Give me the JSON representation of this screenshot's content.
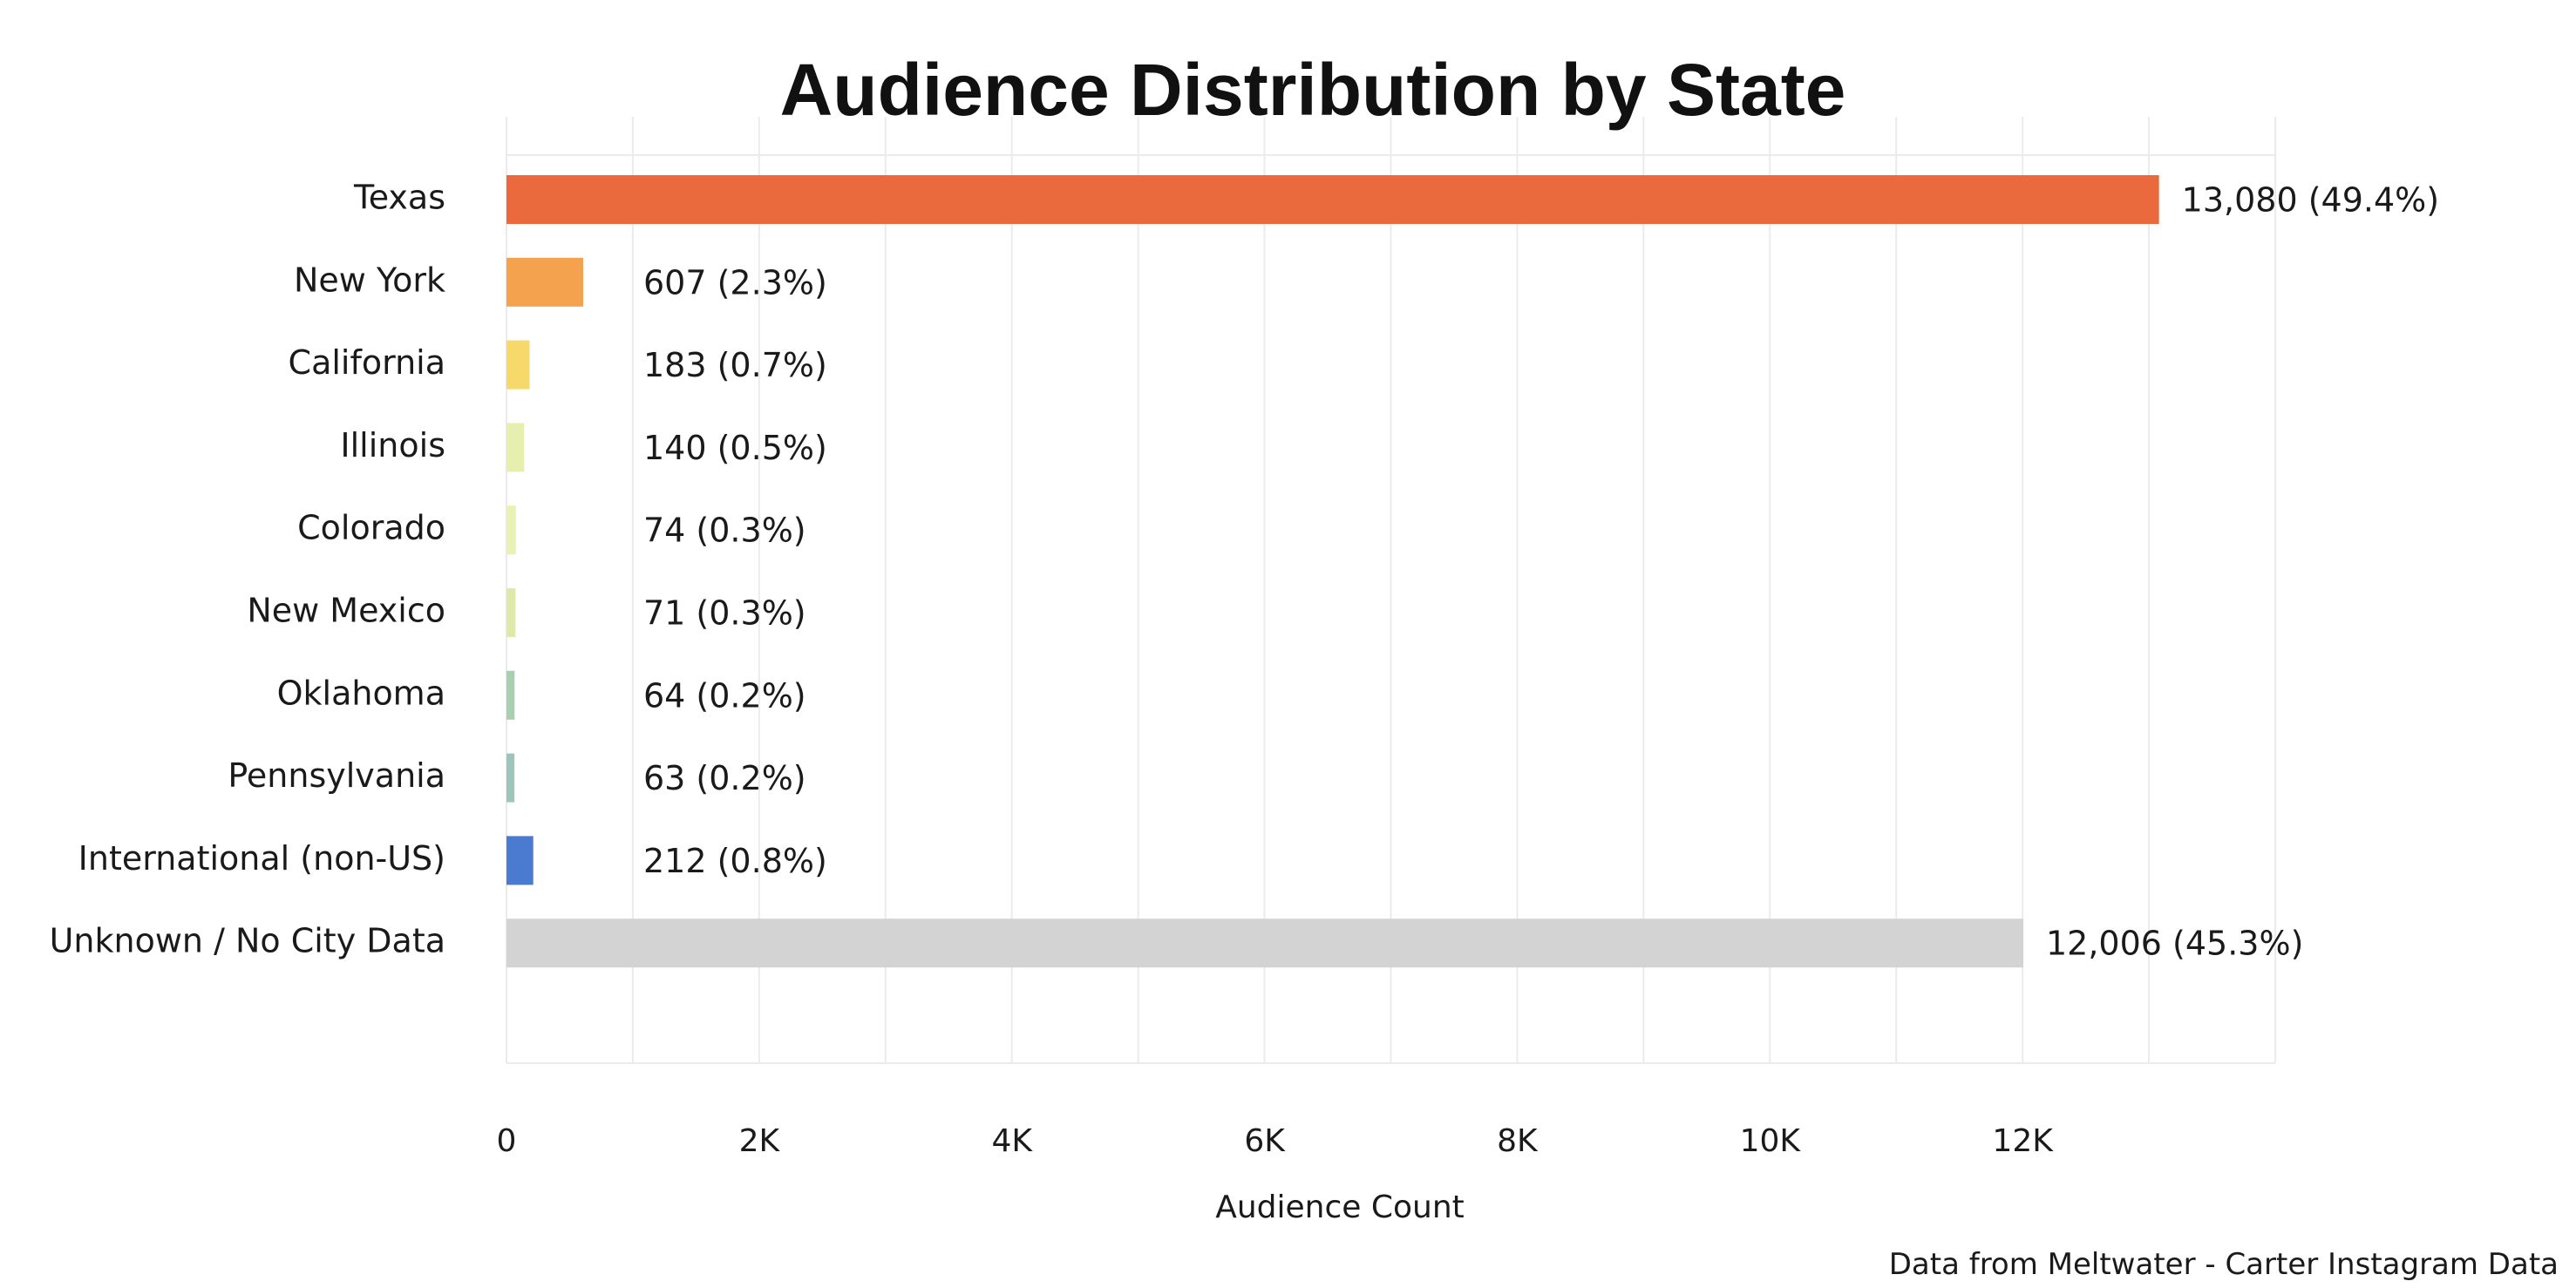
{
  "chart_data": {
    "type": "bar",
    "orientation": "horizontal",
    "title": "Audience Distribution by State",
    "xlabel": "Audience Count",
    "ylabel": "",
    "caption": "Data from Meltwater - Carter Instagram Data",
    "xlim": [
      0,
      14000
    ],
    "xticks": [
      0,
      2000,
      4000,
      6000,
      8000,
      10000,
      12000
    ],
    "xtick_labels": [
      "0",
      "2K",
      "4K",
      "6K",
      "8K",
      "10K",
      "12K"
    ],
    "grid": true,
    "categories": [
      "Texas",
      "New York",
      "California",
      "Illinois",
      "Colorado",
      "New Mexico",
      "Oklahoma",
      "Pennsylvania",
      "International (non-US)",
      "Unknown / No City Data"
    ],
    "values": [
      13080,
      607,
      183,
      140,
      74,
      71,
      64,
      63,
      212,
      12006
    ],
    "labels": [
      "13,080 (49.4%)",
      "607 (2.3%)",
      "183 (0.7%)",
      "140 (0.5%)",
      "74 (0.3%)",
      "71 (0.3%)",
      "64 (0.2%)",
      "63 (0.2%)",
      "212 (0.8%)",
      "12,006 (45.3%)"
    ],
    "colors": [
      "#ea6a3d",
      "#f4a24d",
      "#f7d86a",
      "#e6efad",
      "#e9f1b3",
      "#dfe9a9",
      "#a8cfb2",
      "#9ec5bc",
      "#4a7bd0",
      "#d3d3d3"
    ]
  }
}
